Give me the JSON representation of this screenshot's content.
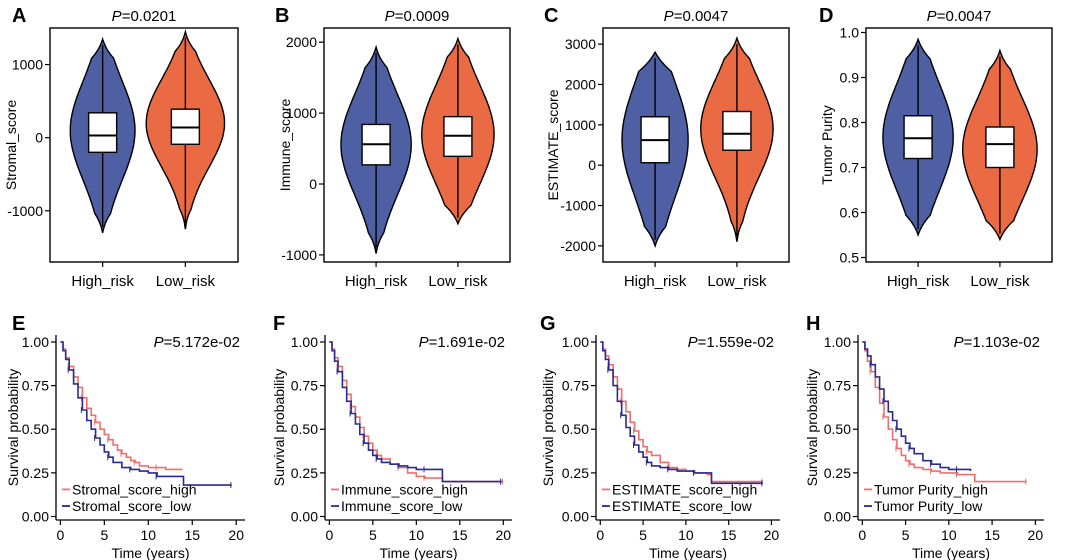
{
  "colors": {
    "high": "#4e5fa3",
    "low": "#e96a43",
    "km_high": "#ef6f6c",
    "km_low": "#2b2b8f"
  },
  "panel_labels": [
    "A",
    "B",
    "C",
    "D",
    "E",
    "F",
    "G",
    "H"
  ],
  "chart_data": [
    {
      "type": "violin",
      "label": "A",
      "title": "P=0.0201",
      "title_prefix": "P",
      "title_rest": "=0.0201",
      "ylabel": "Stromal_score",
      "ylim": [
        -1700,
        1500
      ],
      "yticks": [
        -1000,
        0,
        1000
      ],
      "yticklabels": [
        "-1000",
        "0",
        "1000"
      ],
      "categories": [
        "High_risk",
        "Low_risk"
      ],
      "groups": [
        {
          "name": "High_risk",
          "min": -1300,
          "q1": -200,
          "median": 30,
          "q3": 340,
          "max": 1350,
          "width": 0.62,
          "skew": 0.05
        },
        {
          "name": "Low_risk",
          "min": -1250,
          "q1": -90,
          "median": 140,
          "q3": 390,
          "max": 1450,
          "width": 0.75,
          "skew": 0.1
        }
      ]
    },
    {
      "type": "violin",
      "label": "B",
      "title": "P=0.0009",
      "title_prefix": "P",
      "title_rest": "=0.0009",
      "ylabel": "Immune_score",
      "ylim": [
        -1100,
        2200
      ],
      "yticks": [
        -1000,
        0,
        1000,
        2000
      ],
      "yticklabels": [
        "-1000",
        "0",
        "1000",
        "2000"
      ],
      "categories": [
        "High_risk",
        "Low_risk"
      ],
      "groups": [
        {
          "name": "High_risk",
          "min": -980,
          "q1": 270,
          "median": 560,
          "q3": 840,
          "max": 1930,
          "width": 0.68,
          "skew": 0
        },
        {
          "name": "Low_risk",
          "min": -560,
          "q1": 390,
          "median": 680,
          "q3": 950,
          "max": 2050,
          "width": 0.7,
          "skew": 0.05
        }
      ]
    },
    {
      "type": "violin",
      "label": "C",
      "title": "P=0.0047",
      "title_prefix": "P",
      "title_rest": "=0.0047",
      "ylabel": "ESTIMATE_score",
      "ylim": [
        -2400,
        3400
      ],
      "yticks": [
        -2000,
        -1000,
        0,
        1000,
        2000,
        3000
      ],
      "yticklabels": [
        "-2000",
        "-1000",
        "0",
        "1000",
        "2000",
        "3000"
      ],
      "categories": [
        "High_risk",
        "Low_risk"
      ],
      "groups": [
        {
          "name": "High_risk",
          "min": -2000,
          "q1": 60,
          "median": 620,
          "q3": 1200,
          "max": 2800,
          "width": 0.64,
          "skew": 0
        },
        {
          "name": "Low_risk",
          "min": -1900,
          "q1": 370,
          "median": 780,
          "q3": 1330,
          "max": 3150,
          "width": 0.7,
          "skew": 0.05
        }
      ]
    },
    {
      "type": "violin",
      "label": "D",
      "title": "P=0.0047",
      "title_prefix": "P",
      "title_rest": "=0.0047",
      "ylabel": "Tumor Purity",
      "ylim": [
        0.49,
        1.01
      ],
      "yticks": [
        0.5,
        0.6,
        0.7,
        0.8,
        0.9,
        1.0
      ],
      "yticklabels": [
        "0.5",
        "0.6",
        "0.7",
        "0.8",
        "0.9",
        "1.0"
      ],
      "categories": [
        "High_risk",
        "Low_risk"
      ],
      "groups": [
        {
          "name": "High_risk",
          "min": 0.55,
          "q1": 0.72,
          "median": 0.765,
          "q3": 0.815,
          "max": 0.985,
          "width": 0.68,
          "skew": 0
        },
        {
          "name": "Low_risk",
          "min": 0.54,
          "q1": 0.7,
          "median": 0.752,
          "q3": 0.79,
          "max": 0.96,
          "width": 0.72,
          "skew": -0.05
        }
      ]
    },
    {
      "type": "line",
      "subtype": "kaplan-meier",
      "label": "E",
      "pvalue": "P=5.172e-02",
      "p_prefix": "P",
      "p_rest": "=5.172e-02",
      "xlabel": "Time (years)",
      "ylabel": "Survival probability",
      "xlim": [
        -0.5,
        21
      ],
      "ylim": [
        -0.02,
        1.04
      ],
      "xticks": [
        0,
        5,
        10,
        15,
        20
      ],
      "yticks": [
        0,
        0.25,
        0.5,
        0.75,
        1.0
      ],
      "yticklabels": [
        "0.00",
        "0.25",
        "0.50",
        "0.75",
        "1.00"
      ],
      "series": [
        {
          "name": "Stromal_score_high",
          "color": "#ef6f6c",
          "points": [
            [
              0,
              1.0
            ],
            [
              0.3,
              0.96
            ],
            [
              0.6,
              0.91
            ],
            [
              1,
              0.86
            ],
            [
              1.5,
              0.8
            ],
            [
              2,
              0.74
            ],
            [
              2.5,
              0.68
            ],
            [
              3,
              0.62
            ],
            [
              3.5,
              0.58
            ],
            [
              4,
              0.54
            ],
            [
              4.5,
              0.5
            ],
            [
              5,
              0.47
            ],
            [
              5.5,
              0.44
            ],
            [
              6,
              0.41
            ],
            [
              6.5,
              0.38
            ],
            [
              7,
              0.36
            ],
            [
              7.5,
              0.34
            ],
            [
              8,
              0.32
            ],
            [
              8.5,
              0.31
            ],
            [
              9,
              0.29
            ],
            [
              10,
              0.28
            ],
            [
              11,
              0.28
            ],
            [
              12,
              0.27
            ],
            [
              13.9,
              0.27
            ]
          ]
        },
        {
          "name": "Stromal_score_low",
          "color": "#2b2b8f",
          "points": [
            [
              0,
              1.0
            ],
            [
              0.3,
              0.95
            ],
            [
              0.6,
              0.9
            ],
            [
              1,
              0.84
            ],
            [
              1.5,
              0.76
            ],
            [
              2,
              0.68
            ],
            [
              2.5,
              0.61
            ],
            [
              3,
              0.55
            ],
            [
              3.5,
              0.5
            ],
            [
              4,
              0.45
            ],
            [
              4.5,
              0.41
            ],
            [
              5,
              0.37
            ],
            [
              5.5,
              0.34
            ],
            [
              6,
              0.31
            ],
            [
              7,
              0.28
            ],
            [
              8,
              0.27
            ],
            [
              9,
              0.26
            ],
            [
              10,
              0.25
            ],
            [
              11,
              0.23
            ],
            [
              13.5,
              0.23
            ],
            [
              14,
              0.18
            ],
            [
              19.5,
              0.18
            ]
          ]
        }
      ]
    },
    {
      "type": "line",
      "subtype": "kaplan-meier",
      "label": "F",
      "pvalue": "P=1.691e-02",
      "p_prefix": "P",
      "p_rest": "=1.691e-02",
      "xlabel": "Time (years)",
      "ylabel": "Survival probability",
      "xlim": [
        -0.5,
        21
      ],
      "ylim": [
        -0.02,
        1.04
      ],
      "xticks": [
        0,
        5,
        10,
        15,
        20
      ],
      "yticks": [
        0,
        0.25,
        0.5,
        0.75,
        1.0
      ],
      "yticklabels": [
        "0.00",
        "0.25",
        "0.50",
        "0.75",
        "1.00"
      ],
      "series": [
        {
          "name": "Immune_score_high",
          "color": "#ef6f6c",
          "points": [
            [
              0,
              1.0
            ],
            [
              0.3,
              0.96
            ],
            [
              0.6,
              0.91
            ],
            [
              1,
              0.86
            ],
            [
              1.5,
              0.78
            ],
            [
              2,
              0.7
            ],
            [
              2.5,
              0.63
            ],
            [
              3,
              0.57
            ],
            [
              3.5,
              0.51
            ],
            [
              4,
              0.46
            ],
            [
              4.5,
              0.42
            ],
            [
              5,
              0.38
            ],
            [
              5.5,
              0.35
            ],
            [
              6,
              0.33
            ],
            [
              7,
              0.3
            ],
            [
              8,
              0.28
            ],
            [
              9,
              0.25
            ],
            [
              10,
              0.23
            ],
            [
              11,
              0.22
            ],
            [
              12.5,
              0.22
            ],
            [
              13,
              0.2
            ],
            [
              20,
              0.2
            ]
          ]
        },
        {
          "name": "Immune_score_low",
          "color": "#2b2b8f",
          "points": [
            [
              0,
              1.0
            ],
            [
              0.3,
              0.95
            ],
            [
              0.6,
              0.89
            ],
            [
              1,
              0.83
            ],
            [
              1.5,
              0.74
            ],
            [
              2,
              0.66
            ],
            [
              2.5,
              0.59
            ],
            [
              3,
              0.53
            ],
            [
              3.5,
              0.47
            ],
            [
              4,
              0.42
            ],
            [
              4.5,
              0.38
            ],
            [
              5,
              0.35
            ],
            [
              5.5,
              0.33
            ],
            [
              6,
              0.31
            ],
            [
              7,
              0.3
            ],
            [
              8,
              0.29
            ],
            [
              9,
              0.28
            ],
            [
              10,
              0.27
            ],
            [
              11,
              0.27
            ],
            [
              12.5,
              0.27
            ],
            [
              13,
              0.2
            ],
            [
              19.8,
              0.2
            ]
          ]
        }
      ]
    },
    {
      "type": "line",
      "subtype": "kaplan-meier",
      "label": "G",
      "pvalue": "P=1.559e-02",
      "p_prefix": "P",
      "p_rest": "=1.559e-02",
      "xlabel": "Time (years)",
      "ylabel": "Survival probability",
      "xlim": [
        -0.5,
        21
      ],
      "ylim": [
        -0.02,
        1.04
      ],
      "xticks": [
        0,
        5,
        10,
        15,
        20
      ],
      "yticks": [
        0,
        0.25,
        0.5,
        0.75,
        1.0
      ],
      "yticklabels": [
        "0.00",
        "0.25",
        "0.50",
        "0.75",
        "1.00"
      ],
      "series": [
        {
          "name": "ESTIMATE_score_high",
          "color": "#ef6f6c",
          "points": [
            [
              0,
              1.0
            ],
            [
              0.3,
              0.96
            ],
            [
              0.6,
              0.92
            ],
            [
              1,
              0.87
            ],
            [
              1.5,
              0.8
            ],
            [
              2,
              0.73
            ],
            [
              2.5,
              0.66
            ],
            [
              3,
              0.6
            ],
            [
              3.5,
              0.54
            ],
            [
              4,
              0.49
            ],
            [
              4.5,
              0.44
            ],
            [
              5,
              0.4
            ],
            [
              5.5,
              0.37
            ],
            [
              6,
              0.35
            ],
            [
              7,
              0.31
            ],
            [
              8,
              0.28
            ],
            [
              9,
              0.27
            ],
            [
              10,
              0.26
            ],
            [
              11,
              0.25
            ],
            [
              12.5,
              0.24
            ],
            [
              13,
              0.2
            ],
            [
              19,
              0.2
            ]
          ]
        },
        {
          "name": "ESTIMATE_score_low",
          "color": "#2b2b8f",
          "points": [
            [
              0,
              1.0
            ],
            [
              0.3,
              0.95
            ],
            [
              0.6,
              0.9
            ],
            [
              1,
              0.84
            ],
            [
              1.5,
              0.75
            ],
            [
              2,
              0.66
            ],
            [
              2.5,
              0.58
            ],
            [
              3,
              0.51
            ],
            [
              3.5,
              0.46
            ],
            [
              4,
              0.41
            ],
            [
              4.5,
              0.37
            ],
            [
              5,
              0.34
            ],
            [
              5.5,
              0.31
            ],
            [
              6,
              0.29
            ],
            [
              7,
              0.28
            ],
            [
              8,
              0.27
            ],
            [
              9,
              0.26
            ],
            [
              10,
              0.26
            ],
            [
              11,
              0.25
            ],
            [
              12.5,
              0.25
            ],
            [
              13,
              0.19
            ],
            [
              19,
              0.19
            ]
          ]
        }
      ]
    },
    {
      "type": "line",
      "subtype": "kaplan-meier",
      "label": "H",
      "pvalue": "P=1.103e-02",
      "p_prefix": "P",
      "p_rest": "=1.103e-02",
      "xlabel": "Time (years)",
      "ylabel": "Survival probability",
      "xlim": [
        -0.5,
        21
      ],
      "ylim": [
        -0.02,
        1.04
      ],
      "xticks": [
        0,
        5,
        10,
        15,
        20
      ],
      "yticks": [
        0,
        0.25,
        0.5,
        0.75,
        1.0
      ],
      "yticklabels": [
        "0.00",
        "0.25",
        "0.50",
        "0.75",
        "1.00"
      ],
      "series": [
        {
          "name": "Tumor Purity_high",
          "color": "#ef6f6c",
          "points": [
            [
              0,
              1.0
            ],
            [
              0.3,
              0.95
            ],
            [
              0.6,
              0.89
            ],
            [
              1,
              0.83
            ],
            [
              1.5,
              0.74
            ],
            [
              2,
              0.65
            ],
            [
              2.5,
              0.57
            ],
            [
              3,
              0.5
            ],
            [
              3.5,
              0.44
            ],
            [
              4,
              0.39
            ],
            [
              4.5,
              0.35
            ],
            [
              5,
              0.32
            ],
            [
              5.5,
              0.3
            ],
            [
              6,
              0.28
            ],
            [
              7,
              0.27
            ],
            [
              8,
              0.26
            ],
            [
              9,
              0.25
            ],
            [
              10,
              0.25
            ],
            [
              11,
              0.24
            ],
            [
              12.5,
              0.24
            ],
            [
              13,
              0.2
            ],
            [
              19,
              0.2
            ]
          ]
        },
        {
          "name": "Tumor Purity_low",
          "color": "#2b2b8f",
          "points": [
            [
              0,
              1.0
            ],
            [
              0.3,
              0.96
            ],
            [
              0.6,
              0.92
            ],
            [
              1,
              0.87
            ],
            [
              1.5,
              0.8
            ],
            [
              2,
              0.73
            ],
            [
              2.5,
              0.66
            ],
            [
              3,
              0.6
            ],
            [
              3.5,
              0.55
            ],
            [
              4,
              0.5
            ],
            [
              4.5,
              0.46
            ],
            [
              5,
              0.42
            ],
            [
              5.5,
              0.39
            ],
            [
              6,
              0.36
            ],
            [
              7,
              0.32
            ],
            [
              8,
              0.3
            ],
            [
              9,
              0.28
            ],
            [
              10,
              0.27
            ],
            [
              11,
              0.27
            ],
            [
              12.5,
              0.26
            ]
          ]
        }
      ]
    }
  ]
}
